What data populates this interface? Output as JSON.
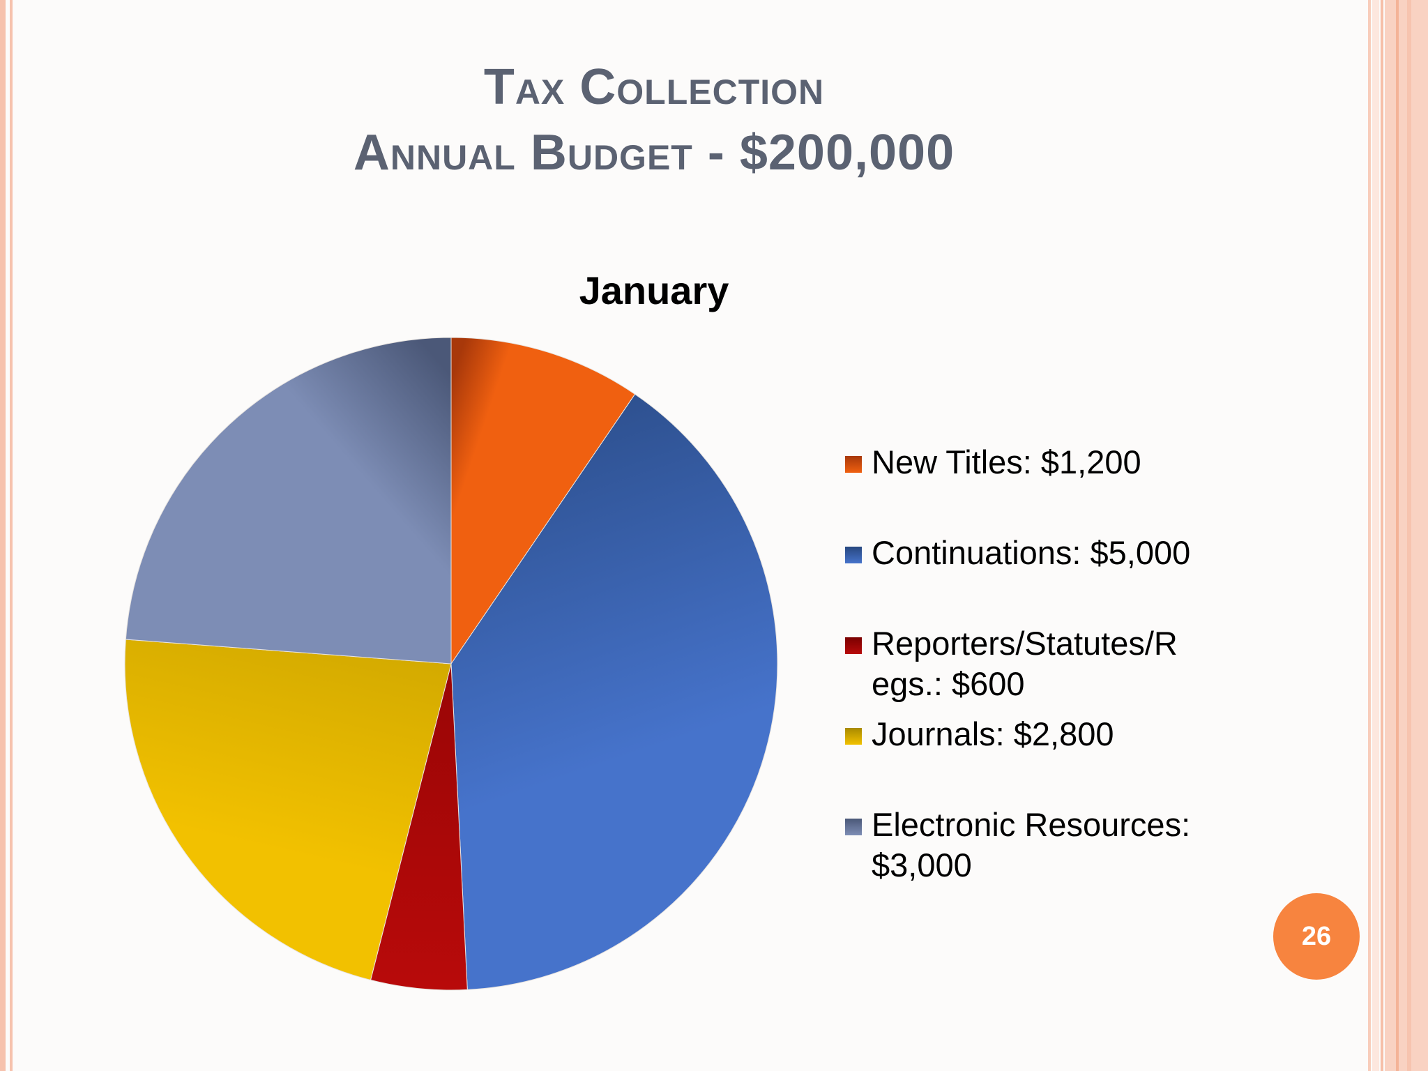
{
  "slide": {
    "title_line1": "Tax Collection",
    "title_line2": "Annual Budget - $200,000",
    "page_number": "26"
  },
  "chart_data": {
    "type": "pie",
    "title": "January",
    "legend_position": "right",
    "slices": [
      {
        "label": "New Titles",
        "value": 1200,
        "legend_lines": [
          "New Titles: $1,200"
        ],
        "color": "#f06010",
        "dark": "#a8380a"
      },
      {
        "label": "Continuations",
        "value": 5000,
        "legend_lines": [
          "Continuations: $5,000"
        ],
        "color": "#4673cb",
        "dark": "#27477f"
      },
      {
        "label": "Reporters/Statutes/Regs.",
        "value": 600,
        "legend_lines": [
          "Reporters/Statutes/R",
          "egs.: $600"
        ],
        "color": "#b80a0a",
        "dark": "#7a0000"
      },
      {
        "label": "Journals",
        "value": 2800,
        "legend_lines": [
          "Journals: $2,800"
        ],
        "color": "#f2c100",
        "dark": "#a88a00"
      },
      {
        "label": "Electronic Resources",
        "value": 3000,
        "legend_lines": [
          "Electronic Resources:",
          "$3,000"
        ],
        "color": "#7d8db5",
        "dark": "#4b5878"
      }
    ]
  }
}
